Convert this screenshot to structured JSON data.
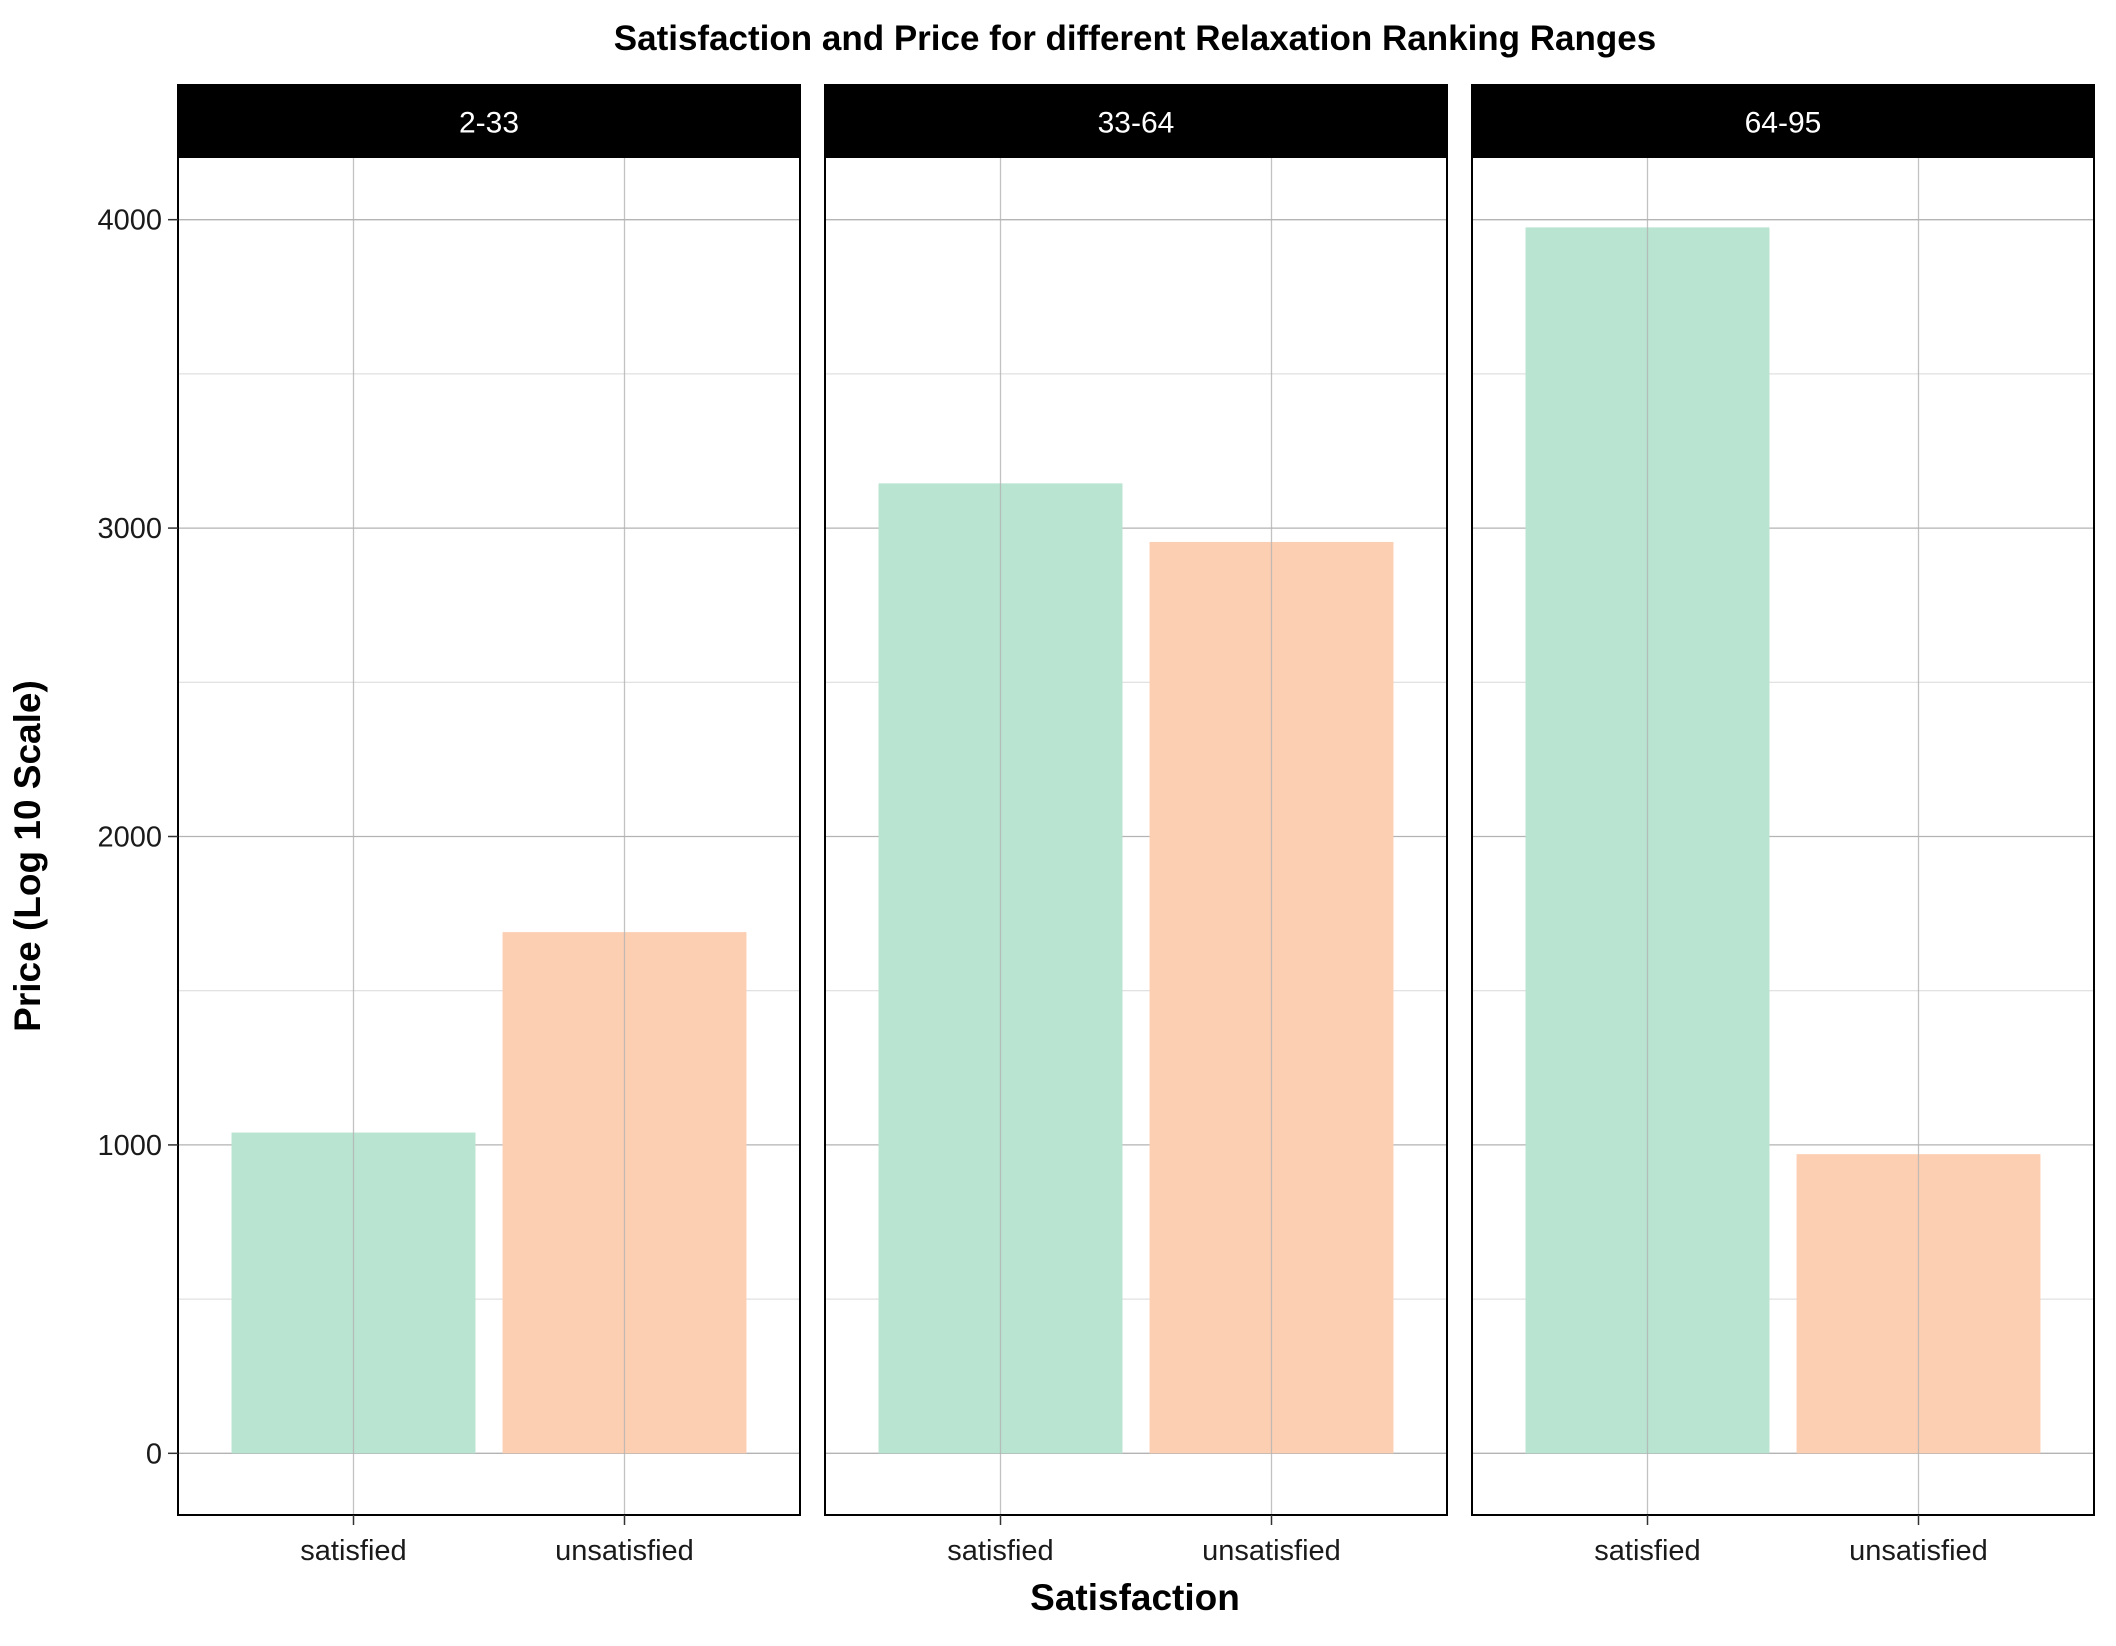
{
  "chart_data": {
    "type": "bar",
    "title": "Satisfaction and Price for different Relaxation Ranking Ranges",
    "xlabel": "Satisfaction",
    "ylabel": "Price (Log 10 Scale)",
    "categories": [
      "satisfied",
      "unsatisfied"
    ],
    "ylim": [
      -200,
      4200
    ],
    "yticks": [
      0,
      1000,
      2000,
      3000,
      4000
    ],
    "grid": true,
    "legend": "none",
    "colors": {
      "satisfied": "#b8e4d1",
      "unsatisfied": "#fdcfb2",
      "strip_bg": "#000000",
      "strip_text": "#ffffff",
      "gridline": "#b3b3b3"
    },
    "facets": [
      {
        "label": "2-33",
        "values": [
          1040,
          1690
        ]
      },
      {
        "label": "33-64",
        "values": [
          3145,
          2955
        ]
      },
      {
        "label": "64-95",
        "values": [
          3975,
          970
        ]
      }
    ]
  }
}
